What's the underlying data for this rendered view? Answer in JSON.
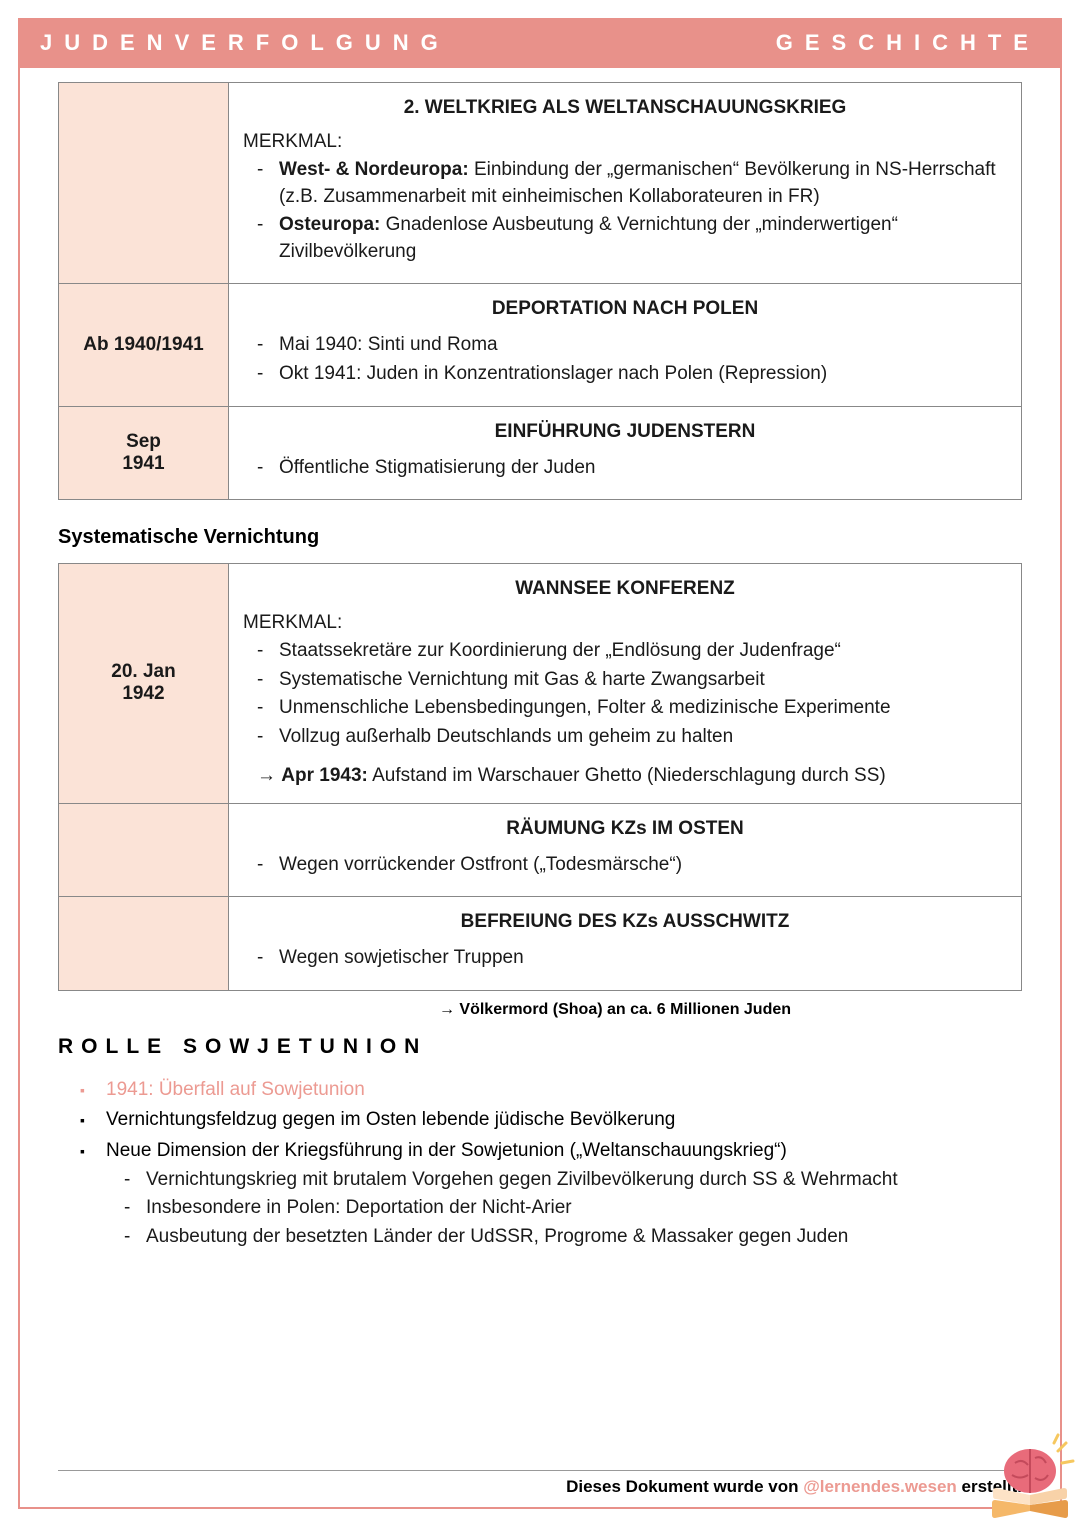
{
  "colors": {
    "accent": "#e8918a",
    "date_bg": "#fbe3d7",
    "text": "#1a1a1a",
    "border": "#888888",
    "pink_text": "#ec9a92"
  },
  "header": {
    "left": "JUDENVERFOLGUNG",
    "right": "GESCHICHTE"
  },
  "table1": {
    "rows": [
      {
        "date": "",
        "title": "2. WELTKRIEG ALS WELTANSCHAUUNGSKRIEG",
        "merkmal_label": "MERKMAL:",
        "bullets": [
          "<b>West- & Nordeuropa:</b> Einbindung der „germanischen“ Bevölkerung in NS-Herrschaft (z.B. Zusammenarbeit mit einheimischen Kollaborateuren in FR)",
          "<b>Osteuropa:</b> Gnadenlose Ausbeutung & Vernichtung der „minderwertigen“ Zivilbevölkerung"
        ]
      },
      {
        "date": "Ab 1940/1941",
        "title": "DEPORTATION NACH POLEN",
        "bullets": [
          "Mai 1940: Sinti und Roma",
          "Okt 1941: Juden in Konzentrationslager nach Polen (Repression)"
        ]
      },
      {
        "date_lines": [
          "Sep",
          "1941"
        ],
        "title": "EINFÜHRUNG JUDENSTERN",
        "bullets": [
          "Öffentliche Stigmatisierung der Juden"
        ]
      }
    ]
  },
  "section2_heading": "Systematische Vernichtung",
  "table2": {
    "rows": [
      {
        "date_lines": [
          "20. Jan",
          "1942"
        ],
        "title": "WANNSEE KONFERENZ",
        "merkmal_label": "MERKMAL:",
        "bullets": [
          "Staatssekretäre zur Koordinierung der „Endlösung der Judenfrage“",
          "Systematische Vernichtung mit Gas & harte Zwangsarbeit",
          "Unmenschliche Lebensbedingungen, Folter & medizinische Experimente",
          "Vollzug außerhalb Deutschlands um geheim zu halten"
        ],
        "arrow": "<b>Apr 1943:</b> Aufstand im Warschauer Ghetto (Niederschlagung durch SS)"
      },
      {
        "date": "",
        "title": "RÄUMUNG KZs IM OSTEN",
        "bullets": [
          "Wegen vorrückender Ostfront („Todesmärsche“)"
        ]
      },
      {
        "date": "",
        "title": "BEFREIUNG DES KZs AUSSCHWITZ",
        "bullets": [
          "Wegen sowjetischer Truppen"
        ]
      }
    ]
  },
  "conclusion": "Völkermord (Shoa) an ca. 6 Millionen Juden",
  "rolle": {
    "heading": "ROLLE SOWJETUNION",
    "items": [
      {
        "text": "1941: Überfall auf Sowjetunion",
        "pink": true
      },
      {
        "text": "Vernichtungsfeldzug gegen im Osten lebende jüdische Bevölkerung"
      },
      {
        "text": "Neue Dimension der Kriegsführung in der Sowjetunion („Weltanschauungskrieg“)",
        "sub": [
          "Vernichtungskrieg mit brutalem Vorgehen gegen Zivilbevölkerung durch SS & Wehrmacht",
          "Insbesondere in Polen: Deportation der Nicht-Arier",
          "Ausbeutung der besetzten Länder der UdSSR, Progrome & Massaker gegen Juden"
        ]
      }
    ]
  },
  "footer": {
    "prefix": "Dieses Dokument wurde von ",
    "handle": "@lernendes.wesen",
    "suffix": " erstellt."
  }
}
